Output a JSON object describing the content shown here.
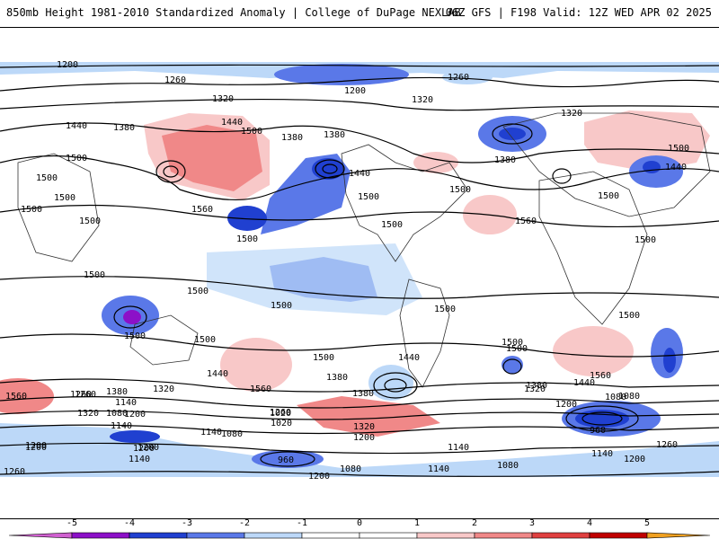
{
  "header": {
    "left_title": "850mb Height 1981-2010 Standardized Anomaly | College of DuPage NEXLAB",
    "right_title": "06Z GFS | F198 Valid: 12Z WED APR 02 2025"
  },
  "colors": {
    "neg5": "#d060d0",
    "neg4": "#8c10c8",
    "neg3": "#2040d0",
    "neg2": "#5a78e8",
    "neg1": "#bcd8f8",
    "pos1": "#f8c8c8",
    "pos2": "#f08888",
    "pos3": "#e04040",
    "pos4": "#c00000",
    "pos5": "#f0a020"
  },
  "colorbar": {
    "ticks": [
      "-5",
      "-4",
      "-3",
      "-2",
      "-1",
      "0",
      "1",
      "2",
      "3",
      "4",
      "5"
    ]
  },
  "contour_labels": [
    "1200",
    "1260",
    "1200",
    "1260",
    "1320",
    "1440",
    "1380",
    "1500",
    "1500",
    "1380",
    "1380",
    "1320",
    "1320",
    "1440",
    "1500",
    "1560",
    "1500",
    "1440",
    "1380",
    "1500",
    "1500",
    "1500",
    "1560",
    "1500",
    "1500",
    "1440",
    "1500",
    "1500",
    "1500",
    "1500",
    "1500",
    "1500",
    "1500",
    "1500",
    "1440",
    "1560",
    "1500",
    "1500",
    "1560",
    "1440",
    "1380",
    "1320",
    "1260",
    "1380",
    "1320",
    "1200",
    "1140",
    "1080",
    "1080",
    "1020",
    "1140",
    "1320",
    "1200",
    "1140",
    "1200",
    "1200",
    "1080",
    "1260",
    "1140",
    "1200",
    "1200",
    "1080",
    "1020",
    "1260",
    "1200",
    "960",
    "1080",
    "1140",
    "1380",
    "1320",
    "1260",
    "1200",
    "1080",
    "1140",
    "960",
    "1200",
    "1140",
    "1260",
    "1380",
    "1440",
    "1560",
    "1500",
    "1500",
    "1500",
    "1500"
  ]
}
